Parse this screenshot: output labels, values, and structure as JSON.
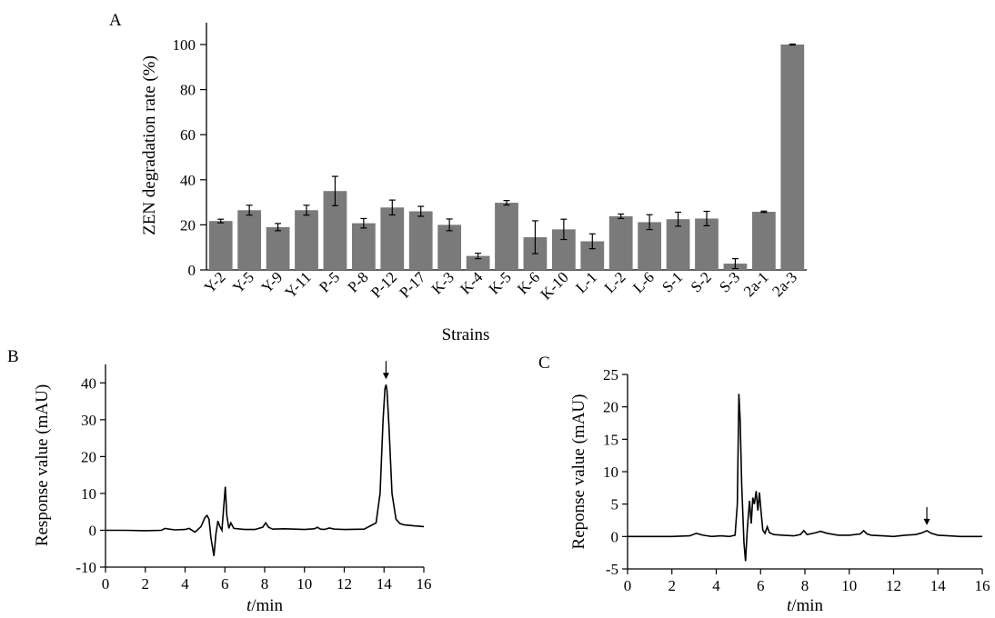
{
  "chart_data": [
    {
      "panel": "A",
      "type": "bar",
      "xlabel": "Strains",
      "ylabel": "ZEN degradation rate (%)",
      "ylim": [
        0,
        110
      ],
      "yticks": [
        0,
        20,
        40,
        60,
        80,
        100
      ],
      "bar_color": "#7a7a7a",
      "categories": [
        "Y-2",
        "Y-5",
        "Y-9",
        "Y-11",
        "P-5",
        "P-8",
        "P-12",
        "P-17",
        "K-3",
        "K-4",
        "K-5",
        "K-6",
        "K-10",
        "L-1",
        "L-2",
        "L-6",
        "S-1",
        "S-2",
        "S-3",
        "2a-1",
        "2a-3"
      ],
      "values": [
        21.7,
        26.5,
        19.0,
        26.5,
        35.0,
        20.7,
        27.7,
        26.0,
        20.0,
        6.2,
        29.8,
        14.5,
        18.0,
        12.7,
        23.8,
        21.2,
        22.5,
        22.8,
        2.8,
        25.8,
        100.0
      ],
      "errors": [
        0.8,
        2.2,
        1.6,
        2.2,
        6.5,
        2.1,
        3.3,
        2.2,
        2.6,
        1.2,
        1.0,
        7.3,
        4.5,
        3.3,
        1.0,
        3.3,
        3.1,
        3.2,
        2.2,
        0.3,
        0.2
      ]
    },
    {
      "panel": "B",
      "type": "line",
      "xlabel_italic": "t",
      "xlabel_rest": "/min",
      "ylabel": "Response value (mAU)",
      "xlim": [
        0,
        16
      ],
      "ylim": [
        -10,
        45
      ],
      "xticks": [
        0,
        2,
        4,
        6,
        8,
        10,
        12,
        14,
        16
      ],
      "yticks": [
        -10,
        0,
        10,
        20,
        30,
        40
      ],
      "annotation_arrow_x": 14.1,
      "x": [
        0,
        1,
        2,
        2.8,
        3.0,
        3.2,
        3.5,
        4.0,
        4.2,
        4.5,
        4.8,
        5.0,
        5.1,
        5.2,
        5.3,
        5.45,
        5.55,
        5.65,
        5.75,
        5.85,
        5.95,
        6.02,
        6.1,
        6.2,
        6.3,
        6.45,
        7.0,
        7.5,
        7.9,
        8.05,
        8.2,
        8.4,
        9.0,
        9.5,
        10.0,
        10.5,
        10.65,
        10.8,
        11.0,
        11.25,
        11.5,
        12.0,
        13.0,
        13.6,
        13.8,
        13.95,
        14.05,
        14.1,
        14.15,
        14.25,
        14.4,
        14.6,
        14.8,
        15.0,
        15.5,
        16.0
      ],
      "y": [
        0,
        0,
        -0.1,
        0,
        0.5,
        0.3,
        0.1,
        0.2,
        0.5,
        -0.5,
        1.0,
        3.5,
        4.0,
        3.0,
        -2.0,
        -7.0,
        -1.0,
        2.5,
        1.0,
        0.0,
        7.0,
        11.8,
        4.0,
        0.5,
        2.0,
        0.5,
        0.2,
        0.2,
        0.8,
        2.0,
        0.8,
        0.3,
        0.4,
        0.3,
        0.2,
        0.4,
        0.8,
        0.3,
        0.2,
        0.6,
        0.3,
        0.2,
        0.3,
        2.0,
        10.0,
        30.0,
        38.5,
        39.5,
        38.0,
        28.0,
        10.0,
        3.0,
        1.8,
        1.5,
        1.2,
        1.0
      ]
    },
    {
      "panel": "C",
      "type": "line",
      "xlabel_italic": "t",
      "xlabel_rest": "/min",
      "ylabel": "Reponse value (mAU)",
      "xlim": [
        0,
        16
      ],
      "ylim": [
        -5,
        25
      ],
      "xticks": [
        0,
        2,
        4,
        6,
        8,
        10,
        12,
        14,
        16
      ],
      "yticks": [
        -5,
        0,
        5,
        10,
        15,
        20,
        25
      ],
      "annotation_arrow_x": 13.5,
      "x": [
        0,
        1,
        2,
        2.8,
        3.1,
        3.4,
        3.8,
        4.2,
        4.6,
        4.85,
        4.95,
        5.02,
        5.08,
        5.15,
        5.25,
        5.32,
        5.4,
        5.5,
        5.58,
        5.65,
        5.72,
        5.8,
        5.88,
        5.95,
        6.02,
        6.1,
        6.2,
        6.3,
        6.4,
        6.6,
        7.0,
        7.5,
        7.8,
        7.95,
        8.1,
        8.5,
        8.7,
        9.0,
        9.5,
        10.0,
        10.5,
        10.65,
        10.8,
        11.0,
        11.5,
        12.0,
        12.5,
        13.0,
        13.3,
        13.5,
        13.7,
        14.0,
        14.5,
        15.0,
        16.0
      ],
      "y": [
        0,
        0,
        0,
        0.1,
        0.5,
        0.2,
        0.0,
        0.1,
        0.0,
        0.2,
        5.0,
        22.0,
        18.0,
        8.0,
        -1.0,
        -3.8,
        1.0,
        5.5,
        2.0,
        6.0,
        5.0,
        7.0,
        4.0,
        6.8,
        4.0,
        1.0,
        0.5,
        1.5,
        0.6,
        0.3,
        0.2,
        0.1,
        0.3,
        0.9,
        0.3,
        0.6,
        0.8,
        0.5,
        0.2,
        0.2,
        0.4,
        0.9,
        0.4,
        0.2,
        0.1,
        0.0,
        0.2,
        0.3,
        0.6,
        0.9,
        0.5,
        0.2,
        0.1,
        0.0,
        0.0
      ]
    }
  ]
}
